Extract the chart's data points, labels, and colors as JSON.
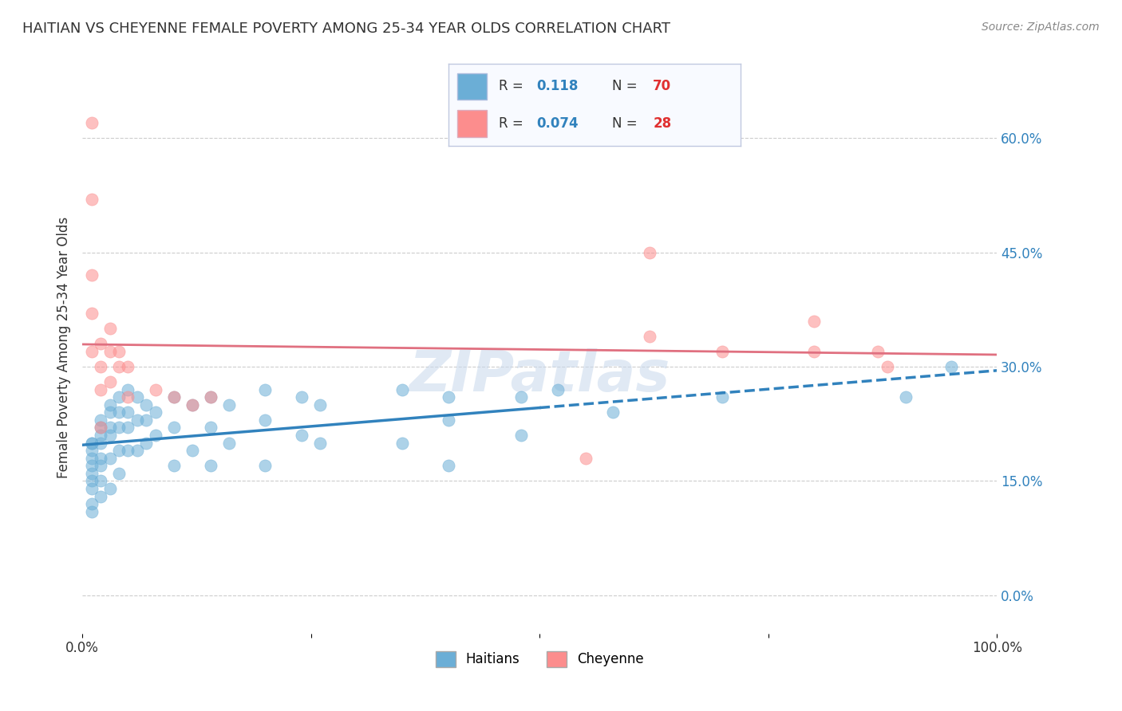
{
  "title": "HAITIAN VS CHEYENNE FEMALE POVERTY AMONG 25-34 YEAR OLDS CORRELATION CHART",
  "source": "Source: ZipAtlas.com",
  "ylabel": "Female Poverty Among 25-34 Year Olds",
  "xlim": [
    0,
    1.0
  ],
  "ylim": [
    -0.05,
    0.7
  ],
  "yticks_right": [
    0.0,
    0.15,
    0.3,
    0.45,
    0.6
  ],
  "watermark": "ZIPatlas",
  "haitian_R": 0.118,
  "haitian_N": 70,
  "cheyenne_R": 0.074,
  "cheyenne_N": 28,
  "haitian_color": "#6baed6",
  "cheyenne_color": "#fc8d8d",
  "haitian_line_color": "#3182bd",
  "cheyenne_line_color": "#e07080",
  "haitian_x": [
    0.01,
    0.01,
    0.01,
    0.01,
    0.01,
    0.01,
    0.01,
    0.01,
    0.01,
    0.01,
    0.02,
    0.02,
    0.02,
    0.02,
    0.02,
    0.02,
    0.02,
    0.02,
    0.03,
    0.03,
    0.03,
    0.03,
    0.03,
    0.03,
    0.04,
    0.04,
    0.04,
    0.04,
    0.04,
    0.05,
    0.05,
    0.05,
    0.05,
    0.06,
    0.06,
    0.06,
    0.07,
    0.07,
    0.07,
    0.08,
    0.08,
    0.1,
    0.1,
    0.1,
    0.12,
    0.12,
    0.14,
    0.14,
    0.14,
    0.16,
    0.16,
    0.2,
    0.2,
    0.2,
    0.24,
    0.24,
    0.26,
    0.26,
    0.35,
    0.35,
    0.4,
    0.4,
    0.4,
    0.48,
    0.48,
    0.52,
    0.58,
    0.7,
    0.9,
    0.95
  ],
  "haitian_y": [
    0.2,
    0.19,
    0.18,
    0.17,
    0.16,
    0.15,
    0.14,
    0.12,
    0.11,
    0.2,
    0.21,
    0.22,
    0.23,
    0.2,
    0.18,
    0.17,
    0.15,
    0.13,
    0.24,
    0.25,
    0.22,
    0.21,
    0.18,
    0.14,
    0.26,
    0.24,
    0.22,
    0.19,
    0.16,
    0.27,
    0.24,
    0.22,
    0.19,
    0.26,
    0.23,
    0.19,
    0.25,
    0.23,
    0.2,
    0.24,
    0.21,
    0.26,
    0.22,
    0.17,
    0.25,
    0.19,
    0.26,
    0.22,
    0.17,
    0.25,
    0.2,
    0.27,
    0.23,
    0.17,
    0.26,
    0.21,
    0.25,
    0.2,
    0.27,
    0.2,
    0.26,
    0.23,
    0.17,
    0.26,
    0.21,
    0.27,
    0.24,
    0.26,
    0.26,
    0.3
  ],
  "cheyenne_x": [
    0.01,
    0.01,
    0.01,
    0.01,
    0.01,
    0.02,
    0.02,
    0.02,
    0.02,
    0.03,
    0.03,
    0.03,
    0.04,
    0.04,
    0.05,
    0.05,
    0.08,
    0.1,
    0.12,
    0.14,
    0.55,
    0.62,
    0.62,
    0.7,
    0.8,
    0.8,
    0.87,
    0.88
  ],
  "cheyenne_y": [
    0.62,
    0.52,
    0.42,
    0.37,
    0.32,
    0.33,
    0.3,
    0.27,
    0.22,
    0.35,
    0.32,
    0.28,
    0.32,
    0.3,
    0.3,
    0.26,
    0.27,
    0.26,
    0.25,
    0.26,
    0.18,
    0.45,
    0.34,
    0.32,
    0.36,
    0.32,
    0.32,
    0.3
  ]
}
